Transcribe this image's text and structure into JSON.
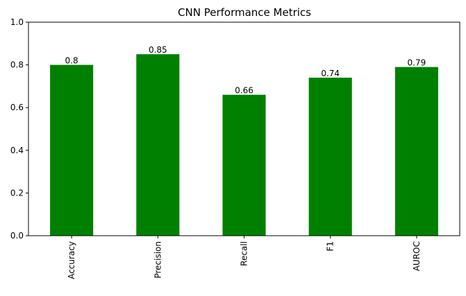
{
  "chart_data": {
    "type": "bar",
    "title": "CNN Performance Metrics",
    "categories": [
      "Accuracy",
      "Precision",
      "Recall",
      "F1",
      "AUROC"
    ],
    "values": [
      0.8,
      0.85,
      0.66,
      0.74,
      0.79
    ],
    "value_labels": [
      "0.8",
      "0.85",
      "0.66",
      "0.74",
      "0.79"
    ],
    "ylim": [
      0,
      1.0
    ],
    "yticks": [
      0.0,
      0.2,
      0.4,
      0.6,
      0.8,
      1.0
    ],
    "ytick_labels": [
      "0.0",
      "0.2",
      "0.4",
      "0.6",
      "0.8",
      "1.0"
    ],
    "xlabel": "",
    "ylabel": "",
    "bar_color": "#008000",
    "grid": false,
    "legend": false,
    "xtick_rotation": "vertical"
  }
}
